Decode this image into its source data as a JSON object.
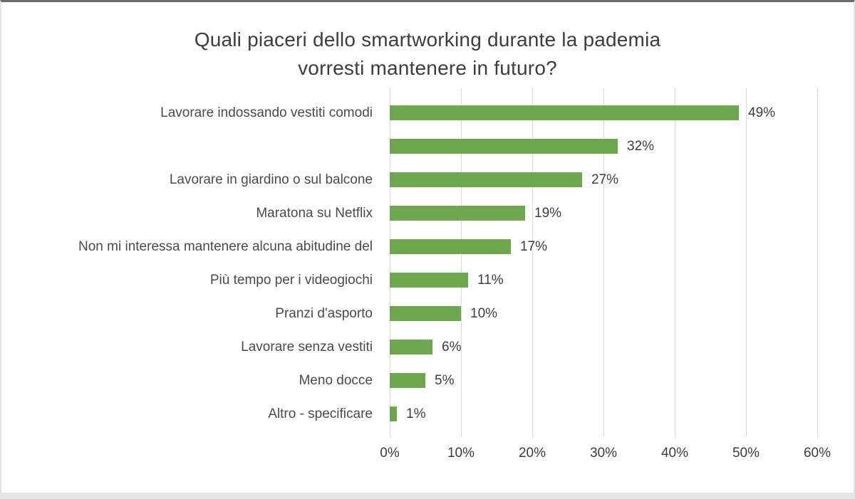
{
  "chart_data": {
    "type": "bar",
    "orientation": "horizontal",
    "title": "Quali piaceri dello smartworking durante la  pademia vorresti mantenere in futuro?",
    "title_lines": [
      "Quali piaceri dello smartworking durante la  pademia",
      "vorresti mantenere in futuro?"
    ],
    "categories": [
      "Lavorare indossando vestiti comodi",
      "",
      "Lavorare in giardino o sul balcone",
      "Maratona su Netflix",
      "Non mi interessa mantenere alcuna abitudine del",
      "Più tempo per i videogiochi",
      "Pranzi d'asporto",
      "Lavorare senza vestiti",
      "Meno docce",
      "Altro - specificare"
    ],
    "values": [
      49,
      32,
      27,
      19,
      17,
      11,
      10,
      6,
      5,
      1
    ],
    "value_labels": [
      "49%",
      "32%",
      "27%",
      "19%",
      "17%",
      "11%",
      "10%",
      "6%",
      "5%",
      "1%"
    ],
    "x_ticks": [
      "0%",
      "10%",
      "20%",
      "30%",
      "40%",
      "50%",
      "60%"
    ],
    "xlim": [
      0,
      60
    ],
    "grid": true,
    "legend": false,
    "data_labels": true,
    "bar_color": "#6EA84C",
    "gridline_color": "#D9D9D9",
    "title_color": "#3D3D3D",
    "label_color": "#4A4A4A"
  }
}
